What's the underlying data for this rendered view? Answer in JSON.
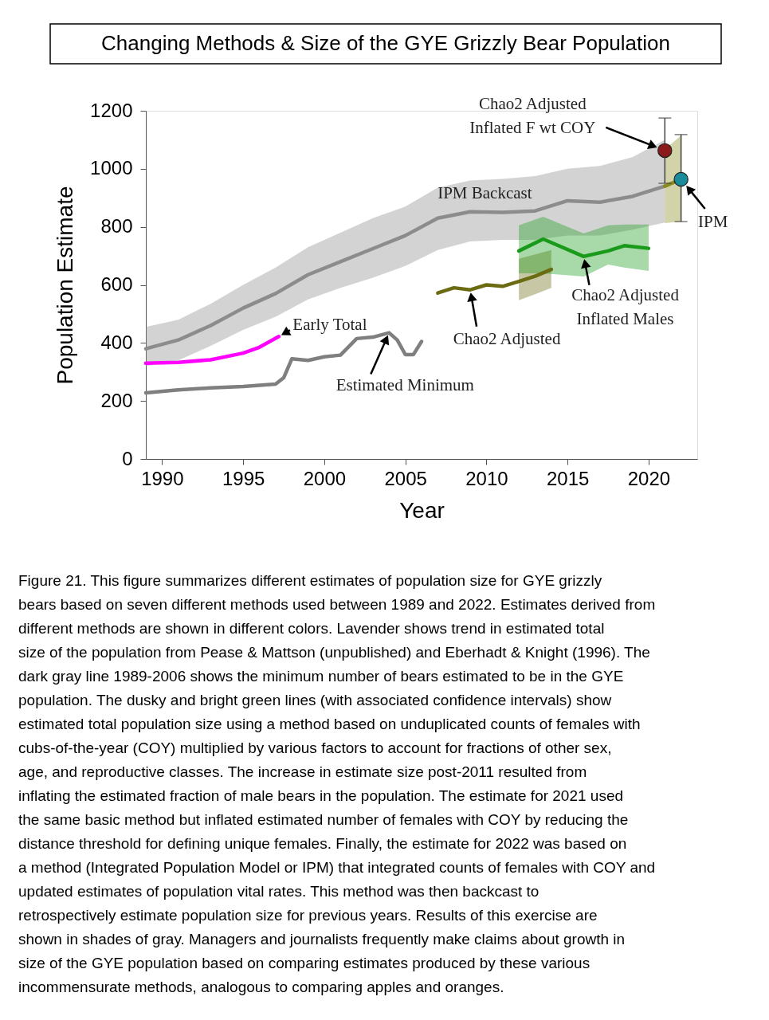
{
  "chart_data": {
    "type": "line",
    "title": "Changing Methods & Size of the GYE Grizzly Bear Population",
    "xlabel": "Year",
    "ylabel": "Population Estimate",
    "xlim": [
      1989,
      2023
    ],
    "xticks": [
      1990,
      1995,
      2000,
      2005,
      2010,
      2015,
      2020
    ],
    "ylim": [
      0,
      1200
    ],
    "yticks": [
      0,
      200,
      400,
      600,
      800,
      {
        "value": 1000,
        "label": "1000"
      },
      {
        "value": 1200,
        "label": "1200"
      }
    ],
    "grid": false,
    "legend": false,
    "series": [
      {
        "name": "IPM Backcast",
        "color": "#8c8c8c",
        "x": [
          1989,
          1991,
          1993,
          1995,
          1997,
          1999,
          2001,
          2003,
          2005,
          2007,
          2009,
          2011,
          2013,
          2015,
          2017,
          2019,
          2021
        ],
        "values": [
          380,
          410,
          460,
          520,
          570,
          635,
          680,
          725,
          770,
          830,
          852,
          850,
          855,
          890,
          885,
          905,
          940
        ],
        "lower": [
          320,
          340,
          390,
          445,
          490,
          550,
          590,
          625,
          665,
          720,
          750,
          755,
          755,
          770,
          770,
          790,
          815
        ],
        "upper": [
          455,
          480,
          535,
          600,
          660,
          730,
          780,
          830,
          870,
          935,
          960,
          965,
          975,
          1000,
          1010,
          1040,
          1100
        ]
      },
      {
        "name": "Early Total",
        "color": "#ff00ff",
        "x": [
          1989,
          1991,
          1993,
          1995,
          1996,
          1997.2
        ],
        "values": [
          330,
          333,
          342,
          365,
          385,
          422
        ]
      },
      {
        "name": "Estimated Minimum",
        "color": "#7f7f7f",
        "x": [
          1989,
          1991,
          1993,
          1995,
          1997,
          1997.5,
          1998,
          1999,
          2000,
          2001,
          2002,
          2003,
          2004,
          2004.5,
          2005,
          2005.5,
          2006
        ],
        "values": [
          228,
          238,
          245,
          250,
          258,
          280,
          345,
          340,
          352,
          358,
          415,
          420,
          435,
          410,
          360,
          360,
          405
        ]
      },
      {
        "name": "Chao2 Adjusted",
        "color": "#6b6b12",
        "x": [
          2007,
          2008,
          2009,
          2010,
          2011,
          2012,
          2013,
          2014
        ],
        "values": [
          572,
          590,
          583,
          600,
          595,
          612,
          630,
          653
        ],
        "lower": [
          null,
          null,
          null,
          null,
          null,
          547,
          568,
          590
        ],
        "upper": [
          null,
          null,
          null,
          null,
          null,
          690,
          705,
          720
        ]
      },
      {
        "name": "Chao2 Adjusted Inflated Males",
        "color": "#1a9a1a",
        "x": [
          2012,
          2013.5,
          2016,
          2017.5,
          2018.5,
          2020
        ],
        "values": [
          717,
          758,
          698,
          717,
          735,
          726
        ],
        "lower": [
          640,
          640,
          629,
          670,
          660,
          648
        ],
        "upper": [
          805,
          835,
          777,
          805,
          808,
          808
        ]
      },
      {
        "name": "Chao2 Adjusted Inflated F wt COY",
        "type": "scatter",
        "marker": "circle",
        "color": "#8b1a1a",
        "x": [
          2021
        ],
        "values": [
          1063
        ],
        "errors": [
          [
            950,
            1175
          ]
        ]
      },
      {
        "name": "IPM",
        "type": "scatter",
        "marker": "circle",
        "color": "#1a8c9c",
        "x": [
          2022
        ],
        "values": [
          964
        ],
        "errors": [
          [
            818,
            1118
          ]
        ]
      },
      {
        "color": "#8b8b1e",
        "x": [
          2021,
          2022
        ],
        "values": [
          940,
          964
        ],
        "lower": [
          813,
          818
        ],
        "upper": [
          1066,
          1115
        ]
      }
    ],
    "annotations": [
      "Figure 21. This figure summarizes different estimates of population size for GYE grizzly bears based on seven different methods used between 1989 and 2022. Estimates derived from different methods are shown in different colors. Lavender shows trend in estimated total size of the population from Pease & Mattson (unpublished) and Eberhadt & Knight (1996). The dark gray line 1989-2006 shows the minimum number of bears estimated to be in the GYE population. The dusky and bright green lines (with associated confidence intervals) show estimated total population size using a method based on unduplicated counts of females with cubs-of-the-year (COY) multiplied by various factors to account for fractions of other sex, age, and reproductive classes. The increase in estimate size post-2011 resulted from inflating the estimated fraction of male bears in the population. The estimate for 2021 used the same basic method but inflated estimated number of females with COY by reducing the distance threshold for defining unique females. Finally, the estimate for 2022 was based on a method (Integrated Population Model or IPM) that integrated counts of females with COY and updated estimates of population vital rates. This method was then backcast to retrospectively estimate population size for previous years. Results of this exercise are shown in shades of gray. Managers and journalists frequently make claims about growth in size of the GYE population based on comparing estimates produced by these various incommensurate methods, analogous to comparing apples and oranges."
    ]
  }
}
